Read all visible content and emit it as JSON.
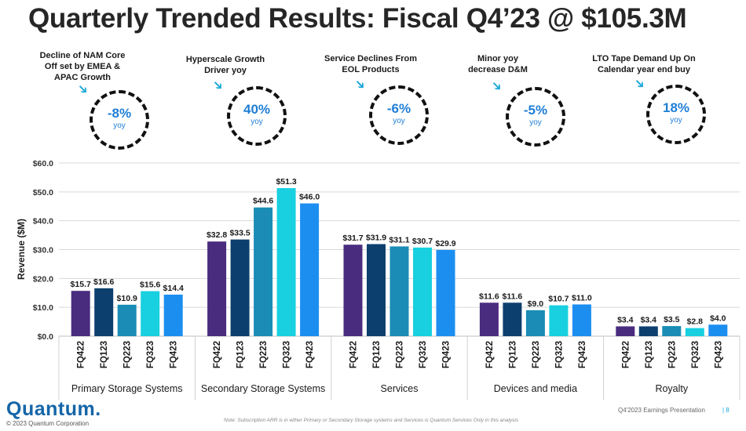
{
  "title": "Quarterly Trended Results: Fiscal Q4’23 @ $105.3M",
  "callouts": [
    {
      "label": "Decline of NAM Core\nOff set by EMEA &\nAPAC Growth",
      "pct": "-8%",
      "unit": "yoy"
    },
    {
      "label": "Hyperscale Growth\nDriver yoy",
      "pct": "40%",
      "unit": "yoy"
    },
    {
      "label": "Service Declines From\nEOL Products",
      "pct": "-6%",
      "unit": "yoy"
    },
    {
      "label": "Minor yoy\ndecrease D&M",
      "pct": "-5%",
      "unit": "yoy"
    },
    {
      "label": "LTO Tape Demand Up On\nCalendar year end buy",
      "pct": "18%",
      "unit": "yoy"
    }
  ],
  "chart_data": {
    "type": "bar",
    "ylabel": "Revenue ($M)",
    "ylim": [
      0,
      60
    ],
    "yticks": [
      "$0.0",
      "$10.0",
      "$20.0",
      "$30.0",
      "$40.0",
      "$50.0",
      "$60.0"
    ],
    "quarters": [
      "FQ422",
      "FQ123",
      "FQ223",
      "FQ323",
      "FQ423"
    ],
    "colors": [
      "#4a2c7f",
      "#0d3f6e",
      "#1a8cb5",
      "#18d0e0",
      "#1c8ef0"
    ],
    "groups": [
      {
        "name": "Primary Storage Systems",
        "values": [
          15.7,
          16.6,
          10.9,
          15.6,
          14.4
        ],
        "labels": [
          "$15.7",
          "$16.6",
          "$10.9",
          "$15.6",
          "$14.4"
        ]
      },
      {
        "name": "Secondary Storage Systems",
        "values": [
          32.8,
          33.5,
          44.6,
          51.3,
          46.0
        ],
        "labels": [
          "$32.8",
          "$33.5",
          "$44.6",
          "$51.3",
          "$46.0"
        ]
      },
      {
        "name": "Services",
        "values": [
          31.7,
          31.9,
          31.1,
          30.7,
          29.9
        ],
        "labels": [
          "$31.7",
          "$31.9",
          "$31.1",
          "$30.7",
          "$29.9"
        ]
      },
      {
        "name": "Devices and media",
        "values": [
          11.6,
          11.6,
          9.0,
          10.7,
          11.0
        ],
        "labels": [
          "$11.6",
          "$11.6",
          "$9.0",
          "$10.7",
          "$11.0"
        ]
      },
      {
        "name": "Royalty",
        "values": [
          3.4,
          3.4,
          3.5,
          2.8,
          4.0
        ],
        "labels": [
          "$3.4",
          "$3.4",
          "$3.5",
          "$2.8",
          "$4.0"
        ]
      }
    ],
    "grid": true
  },
  "footer": {
    "logo": "Quantum.",
    "copyright": "© 2023 Quantum Corporation",
    "note": "Note: Subscription ARR is in either Primary or Secondary Storage systems and Services is Quantum Services Only in this analysis",
    "presentation": "Q4'2023 Earnings Presentation",
    "page": "| 8"
  }
}
